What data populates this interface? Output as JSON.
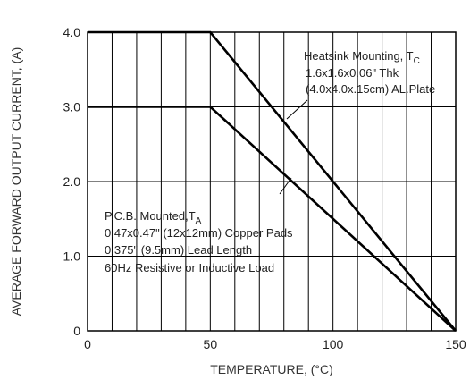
{
  "chart_data": {
    "type": "line",
    "xlabel": "TEMPERATURE, (°C)",
    "ylabel": "AVERAGE FORWARD OUTPUT CURRENT, (A)",
    "xlim": [
      0,
      150
    ],
    "ylim": [
      0,
      4
    ],
    "x_ticks": [
      "0",
      "50",
      "100",
      "150"
    ],
    "y_ticks": [
      "0",
      "1.0",
      "2.0",
      "3.0",
      "4.0"
    ],
    "grid": true,
    "series": [
      {
        "x": [
          0,
          50,
          150
        ],
        "y": [
          4.0,
          4.0,
          0
        ]
      },
      {
        "x": [
          0,
          50,
          150
        ],
        "y": [
          3.0,
          3.0,
          0
        ]
      }
    ],
    "annotations": {
      "heatsink": {
        "line1": "Heatsink Mounting, T",
        "line1_sub": "C",
        "line2": "1.6x1.6x0.06\" Thk",
        "line3": "(4.0x4.0x.15cm) AL.Plate"
      },
      "pcb": {
        "line1": "P.C.B. Mounted,T",
        "line1_sub": "A",
        "line2": "0.47x0.47\" (12x12mm) Copper Pads",
        "line3": "0.375\" (9.5mm) Lead Length",
        "line4": "60Hz Resistive or Inductive Load"
      }
    }
  }
}
